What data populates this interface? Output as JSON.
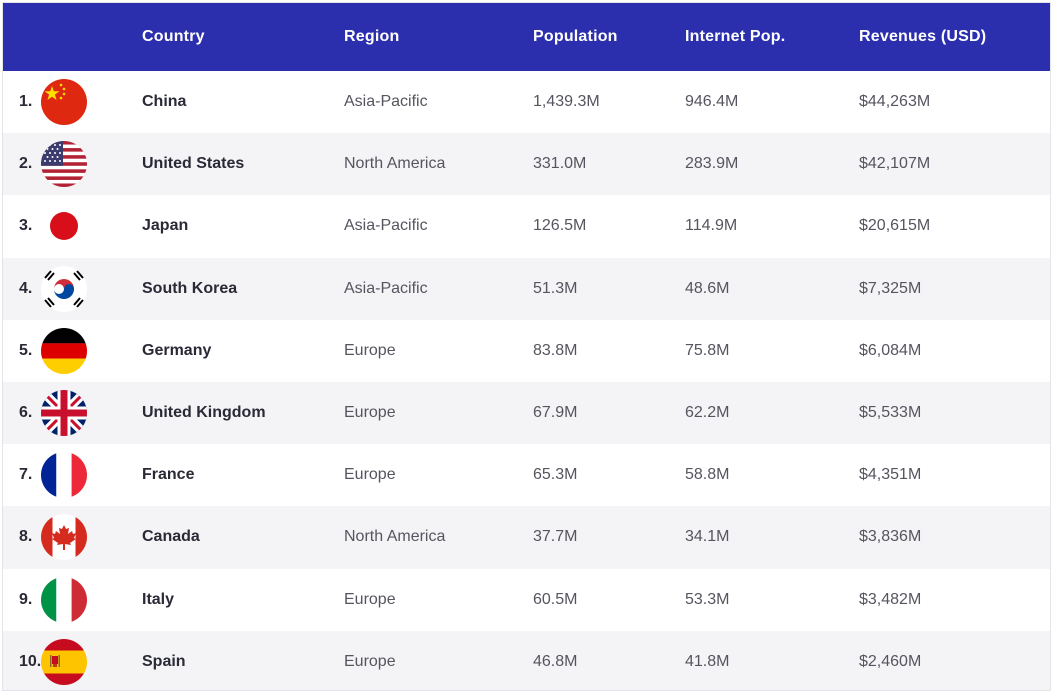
{
  "header": {
    "columns": [
      "",
      "",
      "Country",
      "Region",
      "Population",
      "Internet Pop.",
      "Revenues (USD)"
    ]
  },
  "rows": [
    {
      "rank": "1.",
      "flag": "china-flag-icon",
      "country": "China",
      "region": "Asia-Pacific",
      "population": "1,439.3M",
      "internet": "946.4M",
      "revenue": "$44,263M"
    },
    {
      "rank": "2.",
      "flag": "united-states-flag-icon",
      "country": "United States",
      "region": "North America",
      "population": "331.0M",
      "internet": "283.9M",
      "revenue": "$42,107M"
    },
    {
      "rank": "3.",
      "flag": "japan-flag-icon",
      "country": "Japan",
      "region": "Asia-Pacific",
      "population": "126.5M",
      "internet": "114.9M",
      "revenue": "$20,615M"
    },
    {
      "rank": "4.",
      "flag": "south-korea-flag-icon",
      "country": "South Korea",
      "region": "Asia-Pacific",
      "population": "51.3M",
      "internet": "48.6M",
      "revenue": "$7,325M"
    },
    {
      "rank": "5.",
      "flag": "germany-flag-icon",
      "country": "Germany",
      "region": "Europe",
      "population": "83.8M",
      "internet": "75.8M",
      "revenue": "$6,084M"
    },
    {
      "rank": "6.",
      "flag": "united-kingdom-flag-icon",
      "country": "United Kingdom",
      "region": "Europe",
      "population": "67.9M",
      "internet": "62.2M",
      "revenue": "$5,533M"
    },
    {
      "rank": "7.",
      "flag": "france-flag-icon",
      "country": "France",
      "region": "Europe",
      "population": "65.3M",
      "internet": "58.8M",
      "revenue": "$4,351M"
    },
    {
      "rank": "8.",
      "flag": "canada-flag-icon",
      "country": "Canada",
      "region": "North America",
      "population": "37.7M",
      "internet": "34.1M",
      "revenue": "$3,836M"
    },
    {
      "rank": "9.",
      "flag": "italy-flag-icon",
      "country": "Italy",
      "region": "Europe",
      "population": "60.5M",
      "internet": "53.3M",
      "revenue": "$3,482M"
    },
    {
      "rank": "10.",
      "flag": "spain-flag-icon",
      "country": "Spain",
      "region": "Europe",
      "population": "46.8M",
      "internet": "41.8M",
      "revenue": "$2,460M"
    }
  ],
  "colors": {
    "header_bg": "#2b2fae",
    "row_alt_bg": "#f4f4f6"
  }
}
